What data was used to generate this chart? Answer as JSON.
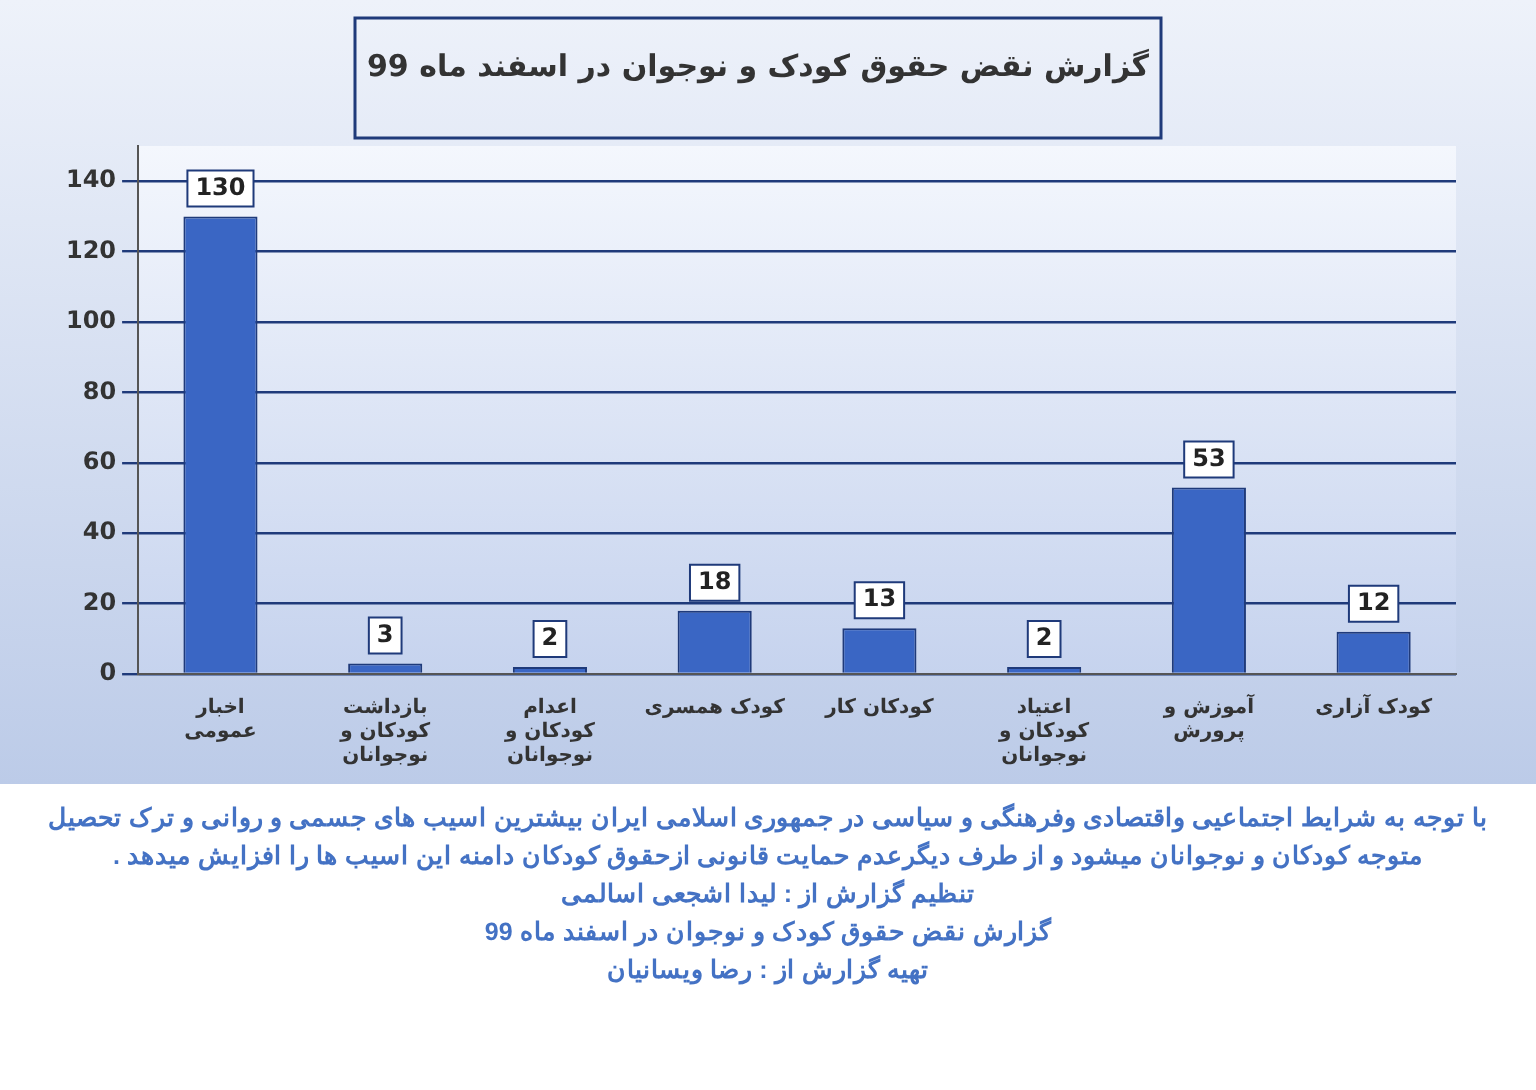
{
  "chart_data": {
    "type": "bar",
    "title": "گزارش نقض حقوق کودک و نوجوان در اسفند ماه 99",
    "categories": [
      "اخبار عمومی",
      "بازداشت کودکان و نوجوانان",
      "اعدام کودکان و نوجوانان",
      "کودک همسری",
      "کودکان کار",
      "اعتیاد کودکان و نوجوانان",
      "آموزش و پرورش",
      "کودک آزاری"
    ],
    "values": [
      130,
      3,
      2,
      18,
      13,
      2,
      53,
      12
    ],
    "color": "#3a66c4",
    "ylim": [
      0,
      150
    ],
    "yticks": [
      0,
      20,
      40,
      60,
      80,
      100,
      120,
      140
    ],
    "grid": "y",
    "legend": false,
    "data_labels": true,
    "annotations": [
      "با توجه به شرایط اجتماعیی واقتصادی وفرهنگی و سیاسی در جمهوری اسلامی ایران بیشترین اسیب های جسمی و روانی و ترک تحصیل متوجه کودکان و نوجوانان میشود و از طرف دیگرعدم حمایت قانونی ازحقوق کودکان دامنه این اسیب ها را افزایش میدهد .",
      "تنظیم گزارش از : لیدا اشجعی اسالمی",
      "گزارش نقض حقوق کودک و نوجوان در اسفند ماه 99",
      "تهیه گزارش از : رضا ویسانیان"
    ]
  }
}
